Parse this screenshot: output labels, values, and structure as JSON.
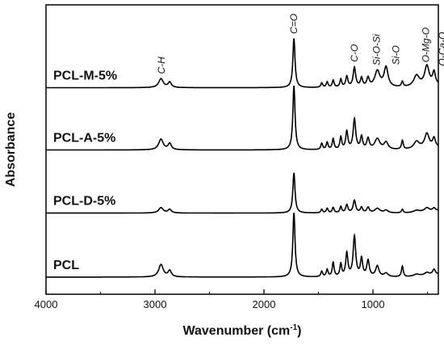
{
  "chart_data": {
    "type": "line",
    "title": "",
    "xlabel": "Wavenumber (cm",
    "xlabel_sup": "-1",
    "xlabel_close": ")",
    "ylabel": "Absorbance",
    "xlim": [
      4000,
      400
    ],
    "x_reversed": true,
    "x_ticks": [
      4000,
      3000,
      2000,
      1000
    ],
    "x_tick_labels": [
      "4000",
      "3000",
      "2000",
      "1000"
    ],
    "y_ticks_shown": false,
    "grid": false,
    "legend": "none",
    "line_color": "#000000",
    "series": [
      {
        "name": "PCL-M-5%",
        "offset": 3.0,
        "baseline": 0.05,
        "peaks": [
          {
            "x": 2945,
            "h": 0.1,
            "w": 25
          },
          {
            "x": 2865,
            "h": 0.06,
            "w": 18
          },
          {
            "x": 1725,
            "h": 0.55,
            "w": 12
          },
          {
            "x": 1470,
            "h": 0.05,
            "w": 10
          },
          {
            "x": 1420,
            "h": 0.06,
            "w": 10
          },
          {
            "x": 1365,
            "h": 0.08,
            "w": 10
          },
          {
            "x": 1295,
            "h": 0.09,
            "w": 10
          },
          {
            "x": 1240,
            "h": 0.12,
            "w": 12
          },
          {
            "x": 1170,
            "h": 0.22,
            "w": 14
          },
          {
            "x": 1105,
            "h": 0.1,
            "w": 12
          },
          {
            "x": 1045,
            "h": 0.1,
            "w": 14
          },
          {
            "x": 960,
            "h": 0.18,
            "w": 28
          },
          {
            "x": 880,
            "h": 0.22,
            "w": 22
          },
          {
            "x": 730,
            "h": 0.06,
            "w": 10
          },
          {
            "x": 600,
            "h": 0.12,
            "w": 30
          },
          {
            "x": 505,
            "h": 0.22,
            "w": 25
          },
          {
            "x": 440,
            "h": 0.14,
            "w": 15
          }
        ]
      },
      {
        "name": "PCL-A-5%",
        "offset": 2.0,
        "baseline": 0.05,
        "peaks": [
          {
            "x": 2945,
            "h": 0.12,
            "w": 25
          },
          {
            "x": 2865,
            "h": 0.07,
            "w": 18
          },
          {
            "x": 1725,
            "h": 0.72,
            "w": 12
          },
          {
            "x": 1470,
            "h": 0.07,
            "w": 10
          },
          {
            "x": 1420,
            "h": 0.08,
            "w": 10
          },
          {
            "x": 1365,
            "h": 0.12,
            "w": 10
          },
          {
            "x": 1295,
            "h": 0.14,
            "w": 10
          },
          {
            "x": 1240,
            "h": 0.2,
            "w": 12
          },
          {
            "x": 1170,
            "h": 0.34,
            "w": 14
          },
          {
            "x": 1105,
            "h": 0.14,
            "w": 12
          },
          {
            "x": 1045,
            "h": 0.12,
            "w": 14
          },
          {
            "x": 960,
            "h": 0.12,
            "w": 28
          },
          {
            "x": 880,
            "h": 0.08,
            "w": 22
          },
          {
            "x": 730,
            "h": 0.1,
            "w": 10
          },
          {
            "x": 600,
            "h": 0.08,
            "w": 30
          },
          {
            "x": 505,
            "h": 0.16,
            "w": 25
          },
          {
            "x": 440,
            "h": 0.1,
            "w": 15
          }
        ]
      },
      {
        "name": "PCL-D-5%",
        "offset": 1.0,
        "baseline": 0.04,
        "peaks": [
          {
            "x": 2945,
            "h": 0.06,
            "w": 25
          },
          {
            "x": 2865,
            "h": 0.04,
            "w": 18
          },
          {
            "x": 1725,
            "h": 0.45,
            "w": 12
          },
          {
            "x": 1470,
            "h": 0.04,
            "w": 10
          },
          {
            "x": 1420,
            "h": 0.05,
            "w": 10
          },
          {
            "x": 1365,
            "h": 0.06,
            "w": 10
          },
          {
            "x": 1295,
            "h": 0.07,
            "w": 10
          },
          {
            "x": 1240,
            "h": 0.09,
            "w": 12
          },
          {
            "x": 1170,
            "h": 0.14,
            "w": 14
          },
          {
            "x": 1105,
            "h": 0.06,
            "w": 12
          },
          {
            "x": 1045,
            "h": 0.06,
            "w": 14
          },
          {
            "x": 960,
            "h": 0.05,
            "w": 28
          },
          {
            "x": 880,
            "h": 0.03,
            "w": 22
          },
          {
            "x": 730,
            "h": 0.04,
            "w": 10
          },
          {
            "x": 600,
            "h": 0.02,
            "w": 30
          },
          {
            "x": 505,
            "h": 0.04,
            "w": 25
          },
          {
            "x": 440,
            "h": 0.03,
            "w": 15
          }
        ]
      },
      {
        "name": "PCL",
        "offset": 0.0,
        "baseline": 0.02,
        "peaks": [
          {
            "x": 2945,
            "h": 0.14,
            "w": 25
          },
          {
            "x": 2865,
            "h": 0.07,
            "w": 18
          },
          {
            "x": 1725,
            "h": 0.72,
            "w": 12
          },
          {
            "x": 1470,
            "h": 0.06,
            "w": 10
          },
          {
            "x": 1420,
            "h": 0.08,
            "w": 10
          },
          {
            "x": 1365,
            "h": 0.16,
            "w": 10
          },
          {
            "x": 1295,
            "h": 0.14,
            "w": 10
          },
          {
            "x": 1240,
            "h": 0.26,
            "w": 12
          },
          {
            "x": 1170,
            "h": 0.45,
            "w": 14
          },
          {
            "x": 1105,
            "h": 0.2,
            "w": 12
          },
          {
            "x": 1045,
            "h": 0.18,
            "w": 14
          },
          {
            "x": 960,
            "h": 0.12,
            "w": 18
          },
          {
            "x": 880,
            "h": 0.04,
            "w": 22
          },
          {
            "x": 730,
            "h": 0.12,
            "w": 10
          },
          {
            "x": 600,
            "h": 0.02,
            "w": 30
          },
          {
            "x": 505,
            "h": 0.03,
            "w": 25
          },
          {
            "x": 440,
            "h": 0.06,
            "w": 15
          }
        ]
      }
    ],
    "annotations": [
      {
        "text": "C-H",
        "x": 2940,
        "lane": 0
      },
      {
        "text": "C=O",
        "x": 1725,
        "lane": 0
      },
      {
        "text": "C-O",
        "x": 1170,
        "lane": 0
      },
      {
        "text": "Si-O-Si",
        "x": 965,
        "lane": 0
      },
      {
        "text": "Si-O",
        "x": 870,
        "lane": 1
      },
      {
        "text": "O-Mg-O",
        "x": 515,
        "lane": 0
      },
      {
        "text": "O-Ca-O",
        "x": 445,
        "lane": 1
      }
    ]
  }
}
